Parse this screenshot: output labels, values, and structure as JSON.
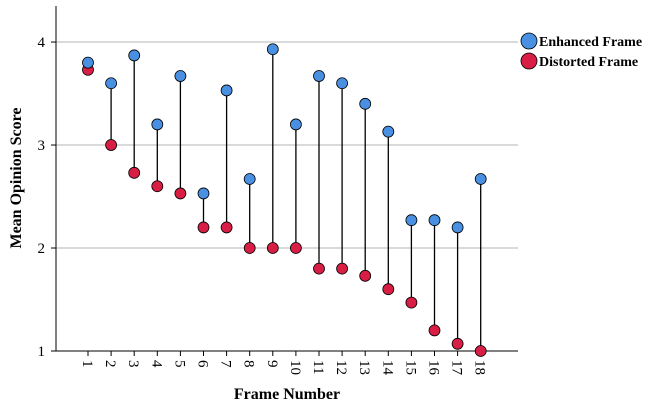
{
  "chart_data": {
    "type": "dumbbell",
    "xlabel": "Frame Number",
    "ylabel": "Mean Opinion Score",
    "ylim": [
      1,
      4.35
    ],
    "yticks": [
      1,
      2,
      3,
      4
    ],
    "grid": "horizontal",
    "legend_position": "top-right",
    "categories": [
      "1",
      "2",
      "3",
      "4",
      "5",
      "6",
      "7",
      "8",
      "9",
      "10",
      "11",
      "12",
      "13",
      "14",
      "15",
      "16",
      "17",
      "18"
    ],
    "series": [
      {
        "name": "Enhanced Frame",
        "color": "#4a90e2",
        "values": [
          3.8,
          3.6,
          3.87,
          3.2,
          3.67,
          2.53,
          3.53,
          2.67,
          3.93,
          3.2,
          3.67,
          3.6,
          3.4,
          3.13,
          2.27,
          2.27,
          2.2,
          2.67
        ]
      },
      {
        "name": "Distorted Frame",
        "color": "#d81e45",
        "values": [
          3.73,
          3.0,
          2.73,
          2.6,
          2.53,
          2.2,
          2.2,
          2.0,
          2.0,
          2.0,
          1.8,
          1.8,
          1.73,
          1.6,
          1.47,
          1.2,
          1.07,
          1.0
        ]
      }
    ]
  }
}
